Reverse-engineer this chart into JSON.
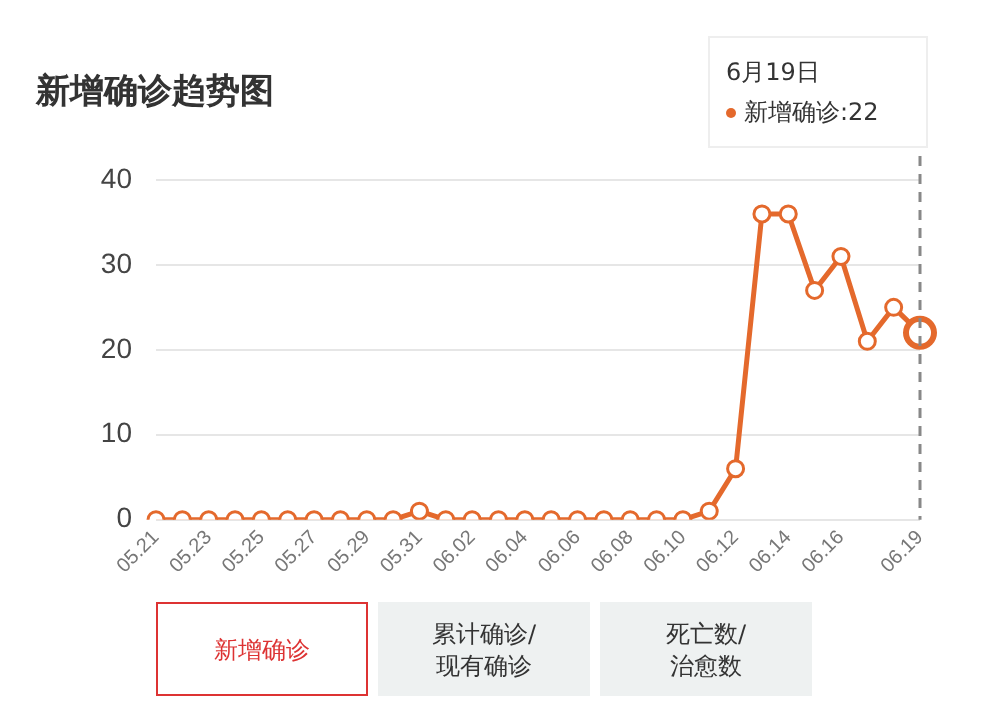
{
  "chart_data": {
    "type": "line",
    "title": "新增确诊趋势图",
    "categories": [
      "05.21",
      null,
      "05.23",
      null,
      "05.25",
      null,
      "05.27",
      null,
      "05.29",
      null,
      "05.31",
      null,
      "06.02",
      null,
      "06.04",
      null,
      "06.06",
      null,
      "06.08",
      null,
      "06.10",
      null,
      "06.12",
      null,
      "06.14",
      null,
      "06.16",
      null,
      null,
      "06.19"
    ],
    "series": [
      {
        "color": "#e4692c",
        "values": [
          0,
          0,
          0,
          0,
          0,
          0,
          0,
          0,
          0,
          0,
          1,
          0,
          0,
          0,
          0,
          0,
          0,
          0,
          0,
          0,
          0,
          1,
          6,
          36,
          36,
          27,
          31,
          21,
          25,
          22
        ]
      }
    ],
    "ylim": [
      0,
      40
    ],
    "yticks": [
      0,
      10,
      20,
      30,
      40
    ],
    "grid": "y",
    "marker": "circle",
    "ref_lines": [
      {
        "axis": "x",
        "value": "06.19",
        "color": "#888888",
        "line_style": "dashed"
      }
    ],
    "annotations": [
      "6月19日",
      "新增确诊:22",
      "新增确诊",
      "累计确诊/\n现有确诊",
      "死亡数/\n治愈数"
    ]
  }
}
